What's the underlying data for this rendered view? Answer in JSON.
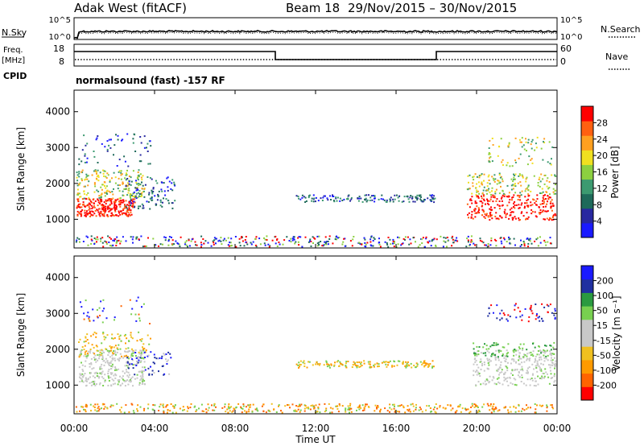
{
  "header": {
    "site": "Adak West (fitACF)",
    "beam": "Beam 18",
    "dates": "29/Nov/2015 – 30/Nov/2015"
  },
  "labels": {
    "nsky": "N.Sky",
    "nsearch": "N.Search",
    "freq": "Freq.",
    "freq_unit": "[MHz]",
    "cpid": "CPID",
    "nave": "Nave",
    "cpid_name": "normalsound (fast) -157 RF",
    "slant_range": "Slant Range [km]",
    "time_axis": "Time UT",
    "power": "Power [dB]",
    "velocity": "Velocity [m s⁻¹]"
  },
  "colors": {
    "power_scale": [
      "#1a1aff",
      "#2828a0",
      "#1e6a5a",
      "#3c9a70",
      "#8cd040",
      "#f0e020",
      "#ffa020",
      "#ff6010",
      "#ff0000"
    ],
    "velocity_scale": [
      "#ff0000",
      "#ff6400",
      "#ff9a00",
      "#f0c020",
      "#c8c8c8",
      "#c8c8c8",
      "#78d050",
      "#2a9a40",
      "#2030a0",
      "#1a1aff"
    ]
  },
  "chart_data": [
    {
      "type": "line",
      "name": "noise-panel",
      "left_ticks": [
        "10^5",
        "10^0"
      ],
      "right_ticks": [
        "10^5",
        "10^0"
      ]
    },
    {
      "type": "line",
      "name": "frequency-panel",
      "freq_ticks": [
        "18",
        "8"
      ],
      "nave_ticks": [
        "60",
        "0"
      ],
      "freq_steps": [
        {
          "t": 0.0,
          "level": "high"
        },
        {
          "t": 10.0,
          "level": "low"
        },
        {
          "t": 18.0,
          "level": "high"
        },
        {
          "t": 24.0,
          "level": "high"
        }
      ]
    },
    {
      "type": "heatmap",
      "name": "power-panel",
      "xlim": [
        0,
        24
      ],
      "ylim": [
        200,
        4600
      ],
      "y_ticks": [
        1000,
        2000,
        3000,
        4000
      ],
      "colorbar_ticks": [
        4,
        8,
        12,
        16,
        20,
        24,
        28
      ]
    },
    {
      "type": "heatmap",
      "name": "velocity-panel",
      "xlim": [
        0,
        24
      ],
      "ylim": [
        200,
        4600
      ],
      "y_ticks": [
        1000,
        2000,
        3000,
        4000
      ],
      "colorbar_ticks": [
        200,
        100,
        50,
        15,
        -15,
        -50,
        -100,
        -200
      ]
    }
  ],
  "x_ticks": [
    "00:00",
    "04:00",
    "08:00",
    "12:00",
    "16:00",
    "20:00",
    "00:00"
  ]
}
